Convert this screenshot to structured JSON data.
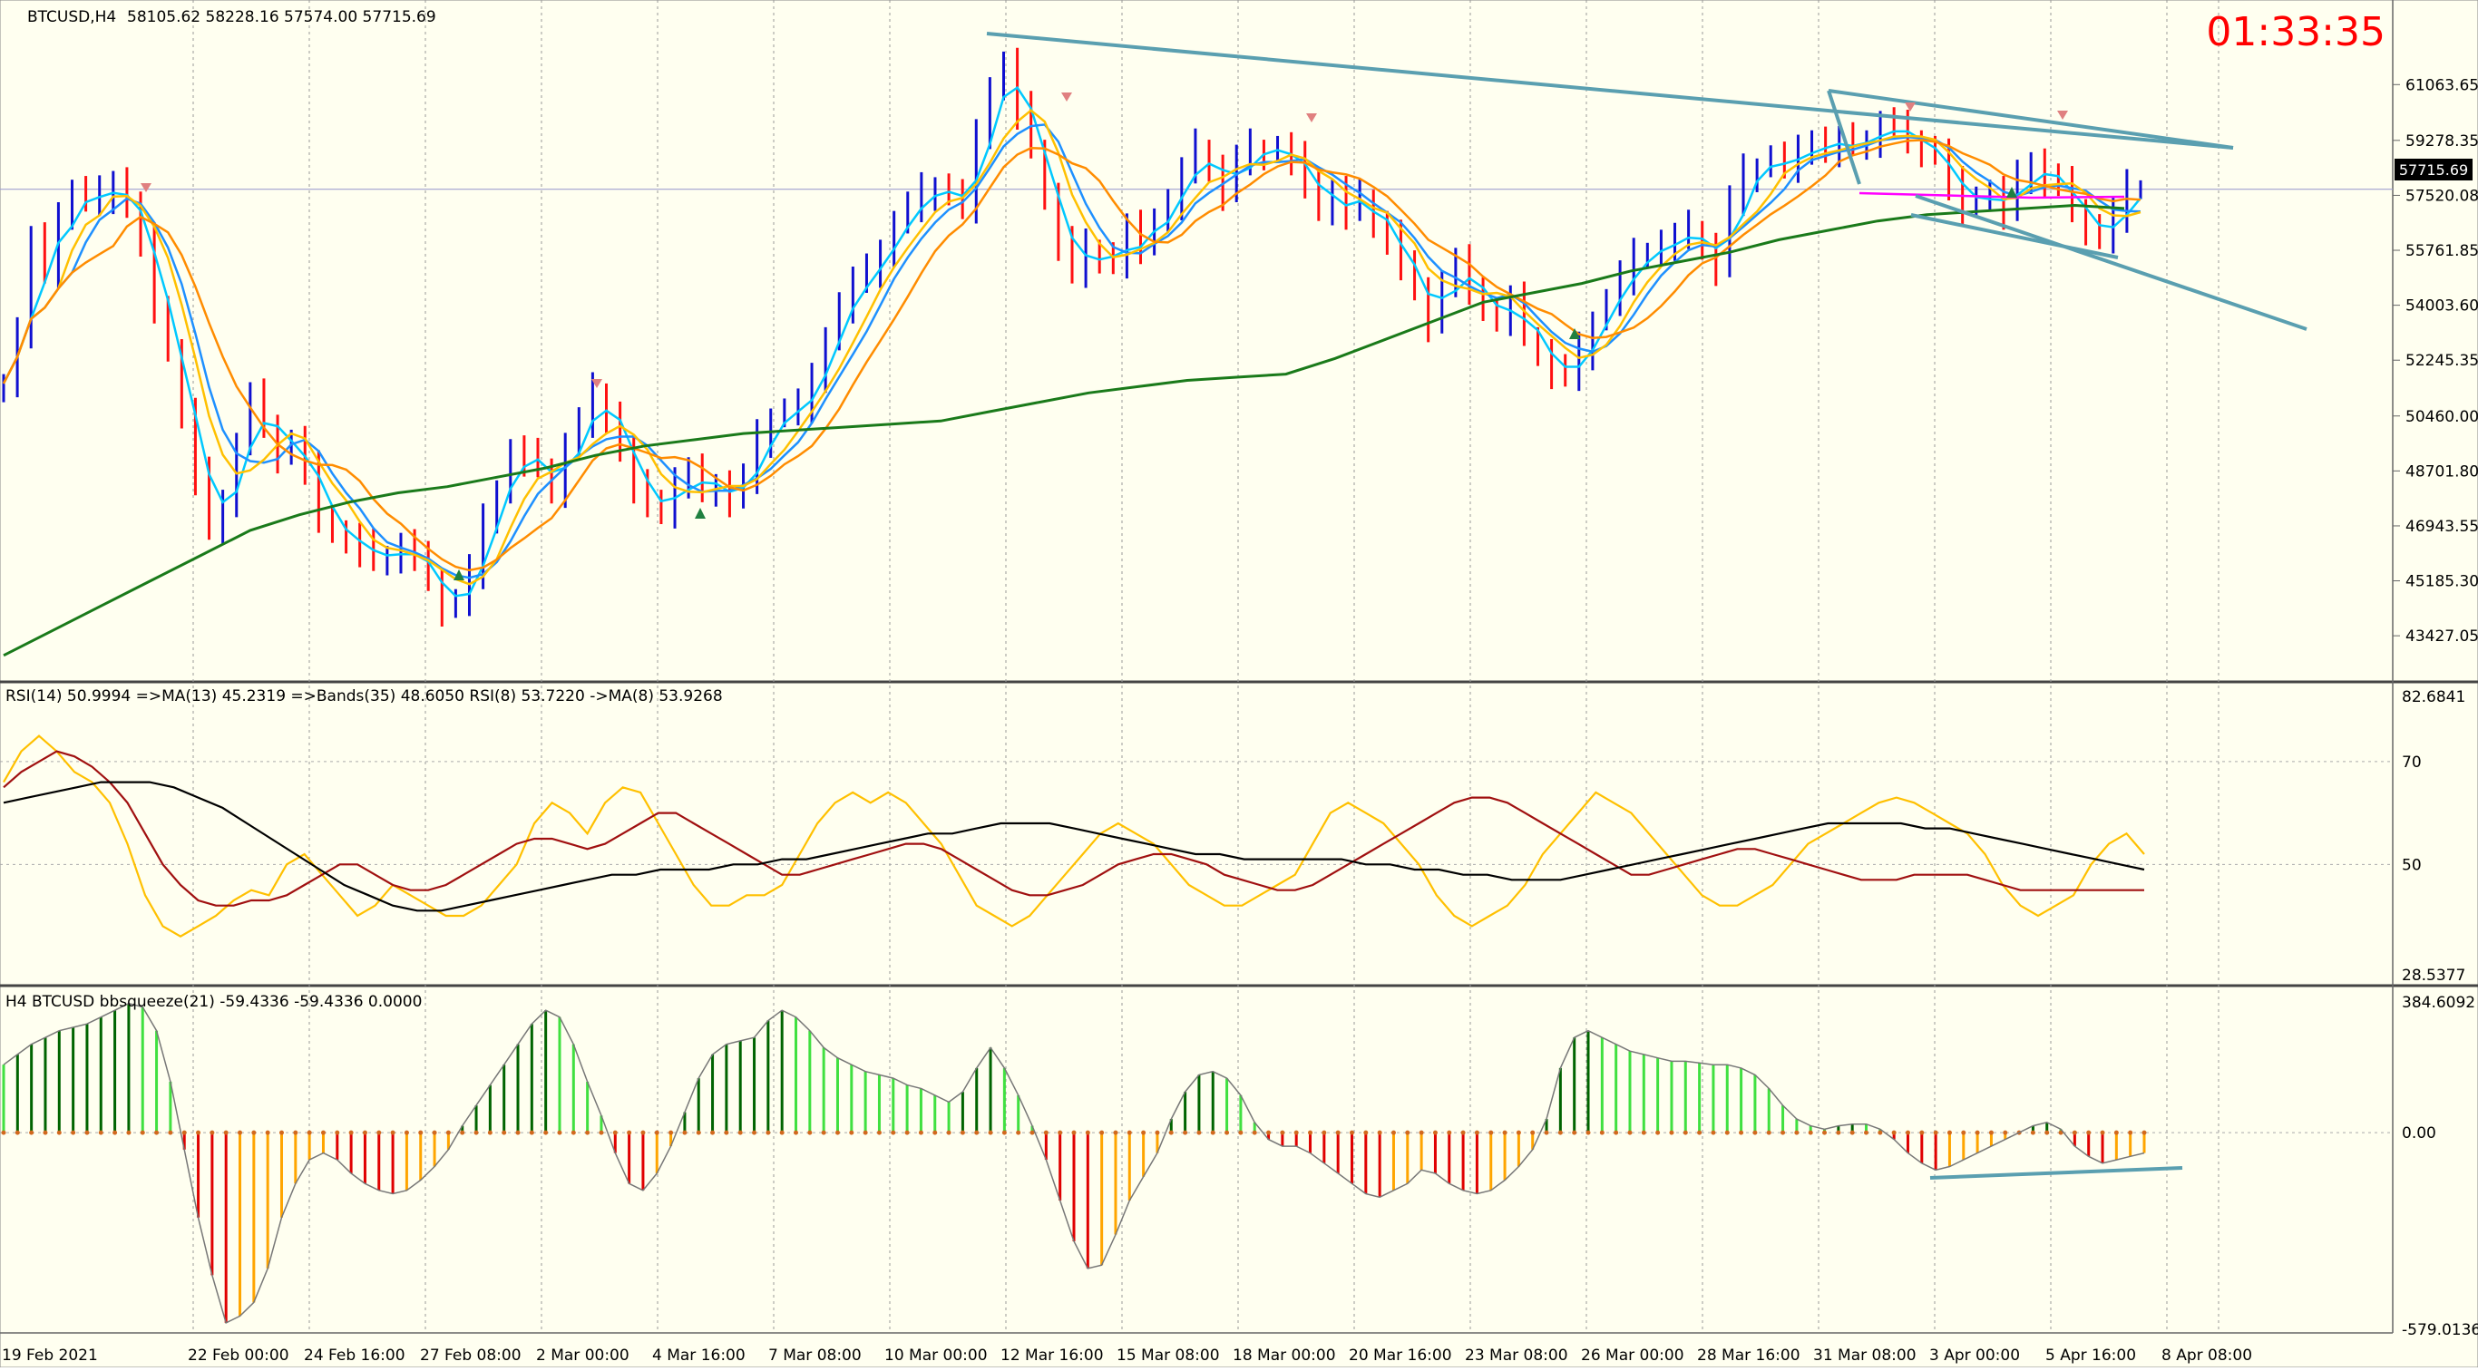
{
  "window": {
    "symbol_label": "BTCUSD,H4",
    "ohlc_label": "58105.62 58228.16 57574.00 57715.69",
    "countdown": "01:33:35",
    "countdown_color": "#ff0000"
  },
  "colors": {
    "background": "#fffff0",
    "bull_bar": "#1010d0",
    "bear_bar": "#ff1010",
    "ma_fast": "#00c8ff",
    "ma_mid": "#1e90ff",
    "ma_orange": "#ff8c00",
    "ma_gold": "#ffc000",
    "ma_long": "#1a7a1a",
    "trendline": "#5a9fb0",
    "magenta_line": "#ff00ff",
    "rsi_gold": "#ffc000",
    "rsi_brown": "#a01010",
    "rsi_black": "#000000",
    "squeeze_dark_green": "#006400",
    "squeeze_light_green": "#40e040",
    "squeeze_red": "#e00000",
    "squeeze_orange": "#ffa500"
  },
  "chart_data": [
    {
      "type": "candlestick",
      "title": "BTCUSD,H4",
      "price_ticks": [
        "61063.65",
        "59278.35",
        "57520.08",
        "55761.85",
        "54003.60",
        "52245.35",
        "50460.00",
        "48701.80",
        "46943.55",
        "45185.30",
        "43427.05"
      ],
      "current_price": "57715.69",
      "ylim": [
        42300,
        62900
      ],
      "x_ticks": [
        "19 Feb 2021",
        "22 Feb 00:00",
        "24 Feb 16:00",
        "27 Feb 08:00",
        "2 Mar 00:00",
        "4 Mar 16:00",
        "7 Mar 08:00",
        "10 Mar 00:00",
        "12 Mar 16:00",
        "15 Mar 08:00",
        "18 Mar 00:00",
        "20 Mar 16:00",
        "23 Mar 08:00",
        "26 Mar 00:00",
        "28 Mar 16:00",
        "31 Mar 08:00",
        "3 Apr 00:00",
        "5 Apr 16:00",
        "8 Apr 08:00"
      ],
      "series": [
        {
          "name": "close",
          "values": [
            51500,
            53200,
            56000,
            55000,
            57000,
            57600,
            57300,
            57500,
            58000,
            57100,
            56000,
            54000,
            52500,
            50500,
            48500,
            46800,
            47800,
            49500,
            51000,
            50200,
            49200,
            49600,
            48700,
            47300,
            46700,
            46500,
            46200,
            45800,
            46000,
            46300,
            45800,
            45300,
            44300,
            44500,
            45500,
            47000,
            48100,
            49300,
            49100,
            48800,
            48100,
            49500,
            50200,
            51200,
            50500,
            49300,
            48100,
            47800,
            47300,
            48400,
            48600,
            48000,
            48300,
            47800,
            48400,
            49700,
            50400,
            50600,
            50800,
            51500,
            53000,
            54000,
            54700,
            55000,
            55800,
            56600,
            57100,
            57600,
            57800,
            57500,
            57200,
            59300,
            61000,
            61700,
            60200,
            59000,
            57500,
            56000,
            55000,
            55800,
            55600,
            55300,
            56400,
            55900,
            56800,
            57300,
            58200,
            59000,
            58400,
            57600,
            58600,
            59000,
            58900,
            59000,
            58600,
            58000,
            57000,
            57600,
            57000,
            57400,
            56600,
            56200,
            55100,
            54600,
            53400,
            54700,
            55300,
            54600,
            53800,
            53600,
            54100,
            53000,
            52500,
            51900,
            51700,
            52500,
            53500,
            54100,
            54900,
            55500,
            55700,
            56000,
            56100,
            56400,
            55900,
            55200,
            57300,
            58200,
            58400,
            58700,
            58500,
            58800,
            59300,
            59000,
            59200,
            59100,
            59300,
            59800,
            59600,
            59300,
            59000,
            58800,
            57800,
            57100,
            57500,
            57600,
            57000,
            58000,
            58600,
            58000,
            57800,
            57100,
            56500,
            56100,
            56900,
            57700,
            57700
          ]
        },
        {
          "name": "ma_fast",
          "values": []
        },
        {
          "name": "ma_long",
          "values": [
            42800,
            43600,
            44400,
            45200,
            46000,
            46800,
            47300,
            47700,
            48000,
            48200,
            48500,
            48800,
            49200,
            49500,
            49700,
            49900,
            50000,
            50100,
            50200,
            50300,
            50600,
            50900,
            51200,
            51400,
            51600,
            51700,
            51800,
            52300,
            52900,
            53500,
            54100,
            54400,
            54700,
            55100,
            55400,
            55700,
            56100,
            56400,
            56700,
            56900,
            57000,
            57100,
            57200,
            57100
          ]
        }
      ],
      "annotations": [
        "descending trendline from 12 Mar 16:00 high",
        "channel lines from 31 Mar"
      ]
    },
    {
      "type": "line",
      "title": "RSI(14) 50.9994  =>MA(13) 45.2319  =>Bands(35) 48.6050  RSI(8) 53.7220  ->MA(8) 53.9268",
      "y_ticks": [
        "82.6841",
        "70",
        "50",
        "28.5377"
      ],
      "ylim": [
        28.5377,
        82.6841
      ],
      "series": [
        {
          "name": "RSI(8)",
          "values": [
            66,
            72,
            75,
            72,
            68,
            66,
            62,
            54,
            44,
            38,
            36,
            38,
            40,
            43,
            45,
            44,
            50,
            52,
            48,
            44,
            40,
            42,
            46,
            44,
            42,
            40,
            40,
            42,
            46,
            50,
            58,
            62,
            60,
            56,
            62,
            65,
            64,
            58,
            52,
            46,
            42,
            42,
            44,
            44,
            46,
            52,
            58,
            62,
            64,
            62,
            64,
            62,
            58,
            54,
            48,
            42,
            40,
            38,
            40,
            44,
            48,
            52,
            56,
            58,
            56,
            54,
            50,
            46,
            44,
            42,
            42,
            44,
            46,
            48,
            54,
            60,
            62,
            60,
            58,
            54,
            50,
            44,
            40,
            38,
            40,
            42,
            46,
            52,
            56,
            60,
            64,
            62,
            60,
            56,
            52,
            48,
            44,
            42,
            42,
            44,
            46,
            50,
            54,
            56,
            58,
            60,
            62,
            63,
            62,
            60,
            58,
            56,
            52,
            46,
            42,
            40,
            42,
            44,
            50,
            54,
            56,
            52
          ]
        },
        {
          "name": "RSI(14)",
          "values": [
            65,
            68,
            70,
            72,
            71,
            69,
            66,
            62,
            56,
            50,
            46,
            43,
            42,
            42,
            43,
            43,
            44,
            46,
            48,
            50,
            50,
            48,
            46,
            45,
            45,
            46,
            48,
            50,
            52,
            54,
            55,
            55,
            54,
            53,
            54,
            56,
            58,
            60,
            60,
            58,
            56,
            54,
            52,
            50,
            48,
            48,
            49,
            50,
            51,
            52,
            53,
            54,
            54,
            53,
            51,
            49,
            47,
            45,
            44,
            44,
            45,
            46,
            48,
            50,
            51,
            52,
            52,
            51,
            50,
            48,
            47,
            46,
            45,
            45,
            46,
            48,
            50,
            52,
            54,
            56,
            58,
            60,
            62,
            63,
            63,
            62,
            60,
            58,
            56,
            54,
            52,
            50,
            48,
            48,
            49,
            50,
            51,
            52,
            53,
            53,
            52,
            51,
            50,
            49,
            48,
            47,
            47,
            47,
            48,
            48,
            48,
            48,
            47,
            46,
            45,
            45,
            45,
            45,
            45,
            45,
            45,
            45
          ]
        },
        {
          "name": "MA",
          "values": [
            62,
            63,
            64,
            65,
            66,
            66,
            66,
            65,
            63,
            61,
            58,
            55,
            52,
            49,
            46,
            44,
            42,
            41,
            41,
            42,
            43,
            44,
            45,
            46,
            47,
            48,
            48,
            49,
            49,
            49,
            50,
            50,
            51,
            51,
            52,
            53,
            54,
            55,
            56,
            56,
            57,
            58,
            58,
            58,
            57,
            56,
            55,
            54,
            53,
            52,
            52,
            51,
            51,
            51,
            51,
            51,
            50,
            50,
            49,
            49,
            48,
            48,
            47,
            47,
            47,
            48,
            49,
            50,
            51,
            52,
            53,
            54,
            55,
            56,
            57,
            58,
            58,
            58,
            58,
            57,
            57,
            56,
            55,
            54,
            53,
            52,
            51,
            50,
            49
          ]
        }
      ]
    },
    {
      "type": "bar",
      "title": "H4 BTCUSD bbsqueeze(21) -59.4336 -59.4336 0.0000",
      "y_ticks": [
        "384.6092",
        "0.00",
        "-579.0136"
      ],
      "ylim": [
        -579.0136,
        384.6092
      ],
      "series": [
        {
          "name": "bbsqueeze",
          "values": [
            200,
            230,
            260,
            280,
            300,
            310,
            320,
            340,
            360,
            380,
            370,
            300,
            150,
            -50,
            -250,
            -420,
            -560,
            -540,
            -500,
            -400,
            -250,
            -150,
            -80,
            -60,
            -80,
            -120,
            -150,
            -170,
            -180,
            -170,
            -140,
            -100,
            -50,
            20,
            80,
            140,
            200,
            260,
            320,
            360,
            340,
            260,
            150,
            50,
            -60,
            -150,
            -170,
            -120,
            -40,
            60,
            160,
            230,
            260,
            270,
            280,
            330,
            360,
            340,
            300,
            250,
            220,
            200,
            180,
            170,
            160,
            140,
            130,
            110,
            90,
            120,
            190,
            250,
            190,
            110,
            20,
            -80,
            -200,
            -320,
            -400,
            -390,
            -300,
            -200,
            -130,
            -60,
            40,
            120,
            170,
            180,
            160,
            110,
            30,
            -20,
            -40,
            -40,
            -60,
            -90,
            -120,
            -150,
            -180,
            -190,
            -170,
            -150,
            -110,
            -120,
            -150,
            -170,
            -180,
            -170,
            -140,
            -100,
            -50,
            40,
            190,
            280,
            300,
            280,
            260,
            240,
            230,
            220,
            210,
            210,
            205,
            200,
            200,
            190,
            170,
            130,
            80,
            40,
            20,
            10,
            20,
            25,
            25,
            10,
            -20,
            -60,
            -90,
            -110,
            -100,
            -80,
            -60,
            -40,
            -20,
            0,
            20,
            30,
            10,
            -40,
            -70,
            -90,
            -80,
            -70,
            -60
          ]
        }
      ]
    }
  ]
}
